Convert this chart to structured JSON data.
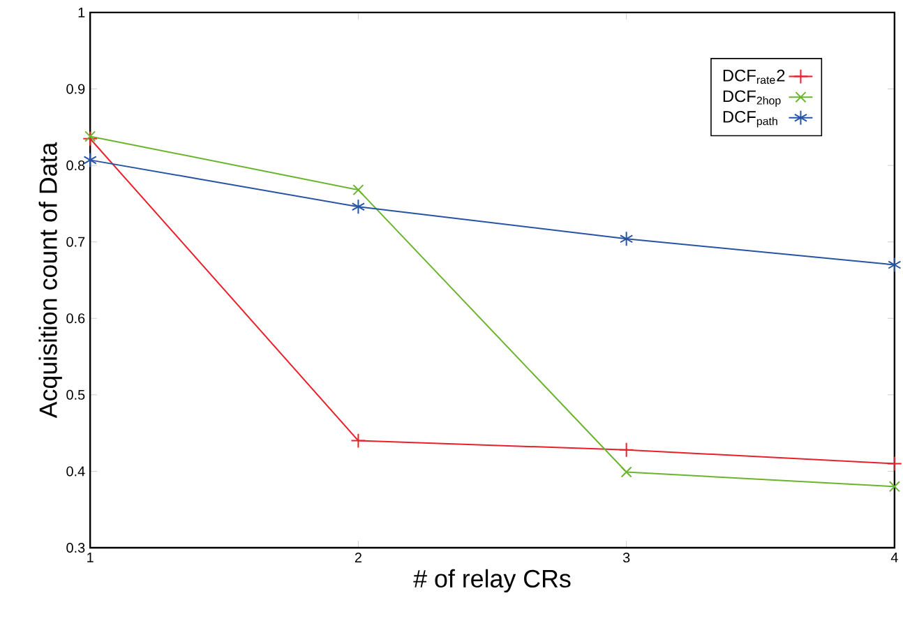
{
  "chart_data": {
    "type": "line",
    "xlabel": "# of relay CRs",
    "ylabel": "Acquisition count of Data",
    "x": [
      1,
      2,
      3,
      4
    ],
    "series": [
      {
        "name": "DCF$_{rate}$2",
        "color": "#e8202a",
        "marker": "plus",
        "values": [
          0.835,
          0.44,
          0.428,
          0.41
        ]
      },
      {
        "name": "DCF$_{2hop}$",
        "color": "#6ab42d",
        "marker": "x",
        "values": [
          0.838,
          0.768,
          0.399,
          0.38
        ]
      },
      {
        "name": "DCF$_{path}$",
        "color": "#2653a3",
        "marker": "cross",
        "values": [
          0.807,
          0.746,
          0.704,
          0.67
        ]
      }
    ],
    "xlim": [
      1,
      4
    ],
    "ylim": [
      0.3,
      1
    ],
    "xticks": [
      1,
      2,
      3,
      4
    ],
    "yticks": [
      0.3,
      0.4,
      0.5,
      0.6,
      0.7,
      0.8,
      0.9,
      1
    ],
    "grid": false,
    "legend": "top right",
    "line_style": "solid"
  }
}
